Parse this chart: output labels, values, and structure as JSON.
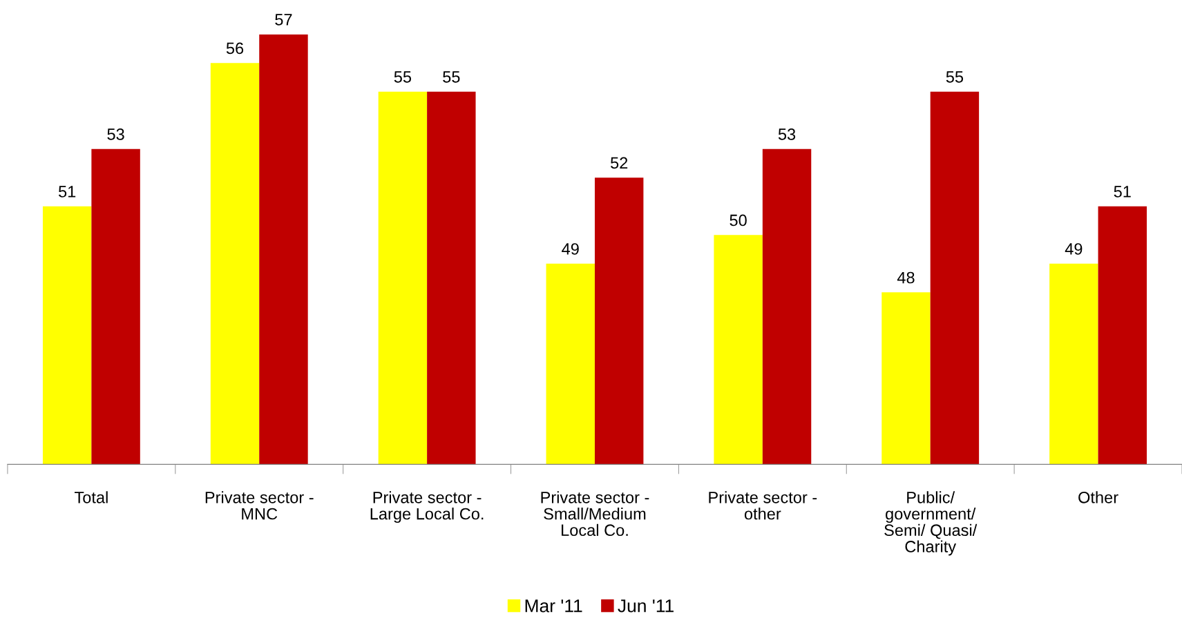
{
  "chart_data": {
    "type": "bar",
    "categories": [
      "Total",
      "Private sector -\nMNC",
      "Private sector -\nLarge Local Co.",
      "Private sector -\nSmall/Medium\nLocal Co.",
      "Private sector -\nother",
      "Public/\ngovernment/\nSemi/ Quasi/\nCharity",
      "Other"
    ],
    "series": [
      {
        "name": "Mar '11",
        "color": "#ffff00",
        "values": [
          51,
          56,
          55,
          49,
          50,
          48,
          49
        ]
      },
      {
        "name": "Jun '11",
        "color": "#c00000",
        "values": [
          53,
          57,
          55,
          52,
          53,
          55,
          51
        ]
      }
    ],
    "ylim": [
      42,
      57
    ],
    "tick_labels": "x",
    "data_labels": true,
    "legend": "bottom",
    "grid": false
  }
}
